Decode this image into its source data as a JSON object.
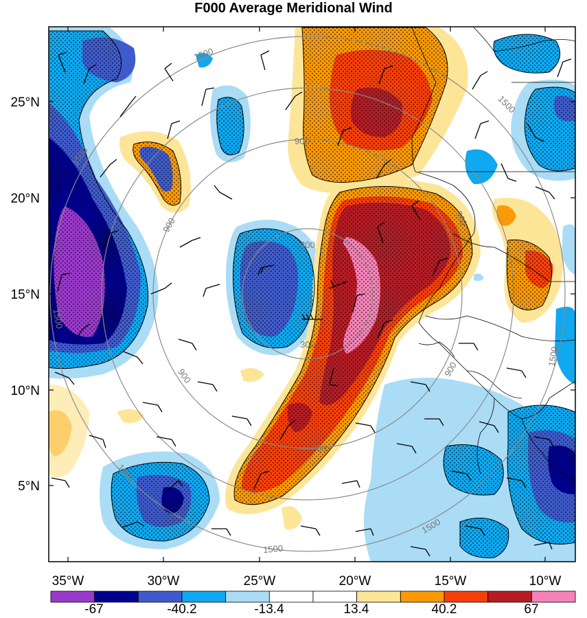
{
  "title": "F000 Average Meridional Wind",
  "map": {
    "lat_labels": [
      "25°N",
      "20°N",
      "15°N",
      "10°N",
      "5°N"
    ],
    "lon_labels": [
      "35°W",
      "30°W",
      "25°W",
      "20°W",
      "15°W",
      "10°W"
    ],
    "lat_range": [
      1.0,
      29.0
    ],
    "lon_range": [
      -36.0,
      -8.3
    ],
    "range_ring_labels": [
      "300",
      "300",
      "900",
      "900",
      "900",
      "900",
      "900",
      "900",
      "1500",
      "1500",
      "1500",
      "1500",
      "1500",
      "1500",
      "1500",
      "1500"
    ],
    "shading_palette": [
      "#9a3acb",
      "#00008f",
      "#3f5bcb",
      "#10a8ef",
      "#aadcf6",
      "#ffffff",
      "#fde598",
      "#f99a06",
      "#f5400b",
      "#b51d25",
      "#f583b7"
    ],
    "stipple_note": "dotted regions mark significant values"
  },
  "colorbar": {
    "tick_labels": [
      "-67",
      "-40.2",
      "-13.4",
      "13.4",
      "40.2",
      "67"
    ],
    "colors": [
      "#9a3acb",
      "#00008f",
      "#3f5bcb",
      "#10a8ef",
      "#aadcf6",
      "#ffffff",
      "#ffffff",
      "#fde598",
      "#f99a06",
      "#f5400b",
      "#b51d25",
      "#f583b7"
    ]
  }
}
